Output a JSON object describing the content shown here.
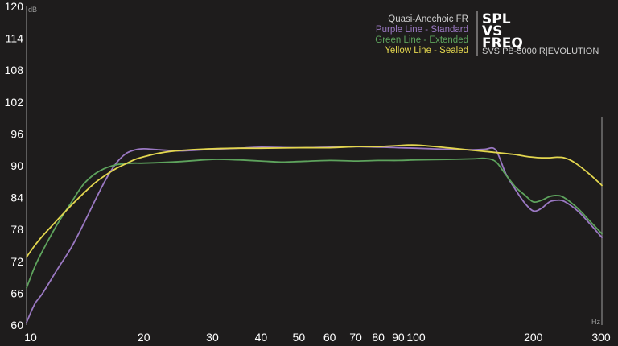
{
  "chart_data": {
    "type": "line",
    "xscale": "log",
    "xlim": [
      10,
      300
    ],
    "ylim": [
      60,
      120
    ],
    "y_ticks": [
      60,
      66,
      72,
      78,
      84,
      90,
      96,
      102,
      108,
      114,
      120
    ],
    "x_ticks": [
      10,
      20,
      30,
      40,
      50,
      60,
      70,
      80,
      90,
      100,
      200,
      300
    ],
    "ylabel": "dB",
    "xlabel": "Hz",
    "grid": false,
    "legend": {
      "title": "Quasi-Anechoic FR",
      "entries": [
        "Purple Line - Standard",
        "Green Line - Extended",
        "Yellow Line - Sealed"
      ]
    },
    "badge": {
      "line1": "SPL",
      "line2": "VS",
      "line3": "FREQ",
      "subtitle": "SVS PB-5000 R|EVOLUTION"
    },
    "series": [
      {
        "color": "#9a78c2",
        "x": [
          10,
          10.5,
          11,
          12,
          13,
          14,
          15,
          16,
          17,
          18,
          19,
          20,
          22,
          25,
          30,
          35,
          40,
          50,
          60,
          70,
          80,
          90,
          100,
          120,
          140,
          150,
          160,
          170,
          180,
          190,
          200,
          210,
          220,
          230,
          240,
          260,
          280,
          300
        ],
        "y": [
          60.5,
          64,
          66,
          70.5,
          74.5,
          79,
          83.5,
          87.5,
          90.5,
          92.3,
          93,
          93.2,
          93,
          92.8,
          93.1,
          93.3,
          93.5,
          93.4,
          93.5,
          93.6,
          93.5,
          93.4,
          93.3,
          93.1,
          93,
          93.1,
          93,
          88.5,
          85.5,
          83,
          81.5,
          82,
          83.2,
          83.5,
          83.3,
          81.5,
          79,
          76.5
        ]
      },
      {
        "color": "#5ea35d",
        "x": [
          10,
          10.5,
          11,
          12,
          13,
          14,
          15,
          16,
          17,
          18,
          19,
          20,
          25,
          30,
          35,
          40,
          45,
          50,
          60,
          70,
          80,
          90,
          100,
          120,
          140,
          150,
          160,
          170,
          180,
          190,
          200,
          210,
          220,
          230,
          240,
          260,
          280,
          300
        ],
        "y": [
          67,
          71,
          74,
          79,
          83,
          86.5,
          88.5,
          89.6,
          90.2,
          90.4,
          90.5,
          90.5,
          90.8,
          91.2,
          91.1,
          90.9,
          90.7,
          90.8,
          91,
          90.9,
          91,
          91,
          91.1,
          91.2,
          91.3,
          91.4,
          90.8,
          88.3,
          86,
          84.5,
          83.2,
          83.5,
          84.2,
          84.4,
          84,
          82,
          79.5,
          77.2
        ]
      },
      {
        "color": "#e3d64f",
        "x": [
          10,
          10.5,
          11,
          12,
          13,
          14,
          15,
          16,
          17,
          18,
          19,
          20,
          22,
          25,
          30,
          35,
          40,
          50,
          60,
          70,
          80,
          90,
          100,
          120,
          140,
          150,
          160,
          170,
          180,
          190,
          200,
          210,
          220,
          230,
          240,
          250,
          260,
          280,
          300
        ],
        "y": [
          72.8,
          75,
          76.8,
          79.8,
          82.5,
          84.8,
          86.8,
          88.3,
          89.5,
          90.4,
          91.2,
          91.7,
          92.4,
          92.9,
          93.2,
          93.3,
          93.3,
          93.4,
          93.4,
          93.6,
          93.6,
          93.8,
          93.9,
          93.4,
          92.9,
          92.7,
          92.5,
          92.3,
          92.1,
          91.8,
          91.6,
          91.5,
          91.5,
          91.6,
          91.5,
          91,
          90.2,
          88.3,
          86.3
        ]
      }
    ]
  },
  "colors": {
    "background": "#1e1c1c",
    "axis": "#9e9e9e",
    "tick_text": "#ffffff",
    "legend_title": "#d0d0d0",
    "legend_purple": "#9a78c2",
    "legend_green": "#5ea35d",
    "legend_yellow": "#e3d64f"
  }
}
